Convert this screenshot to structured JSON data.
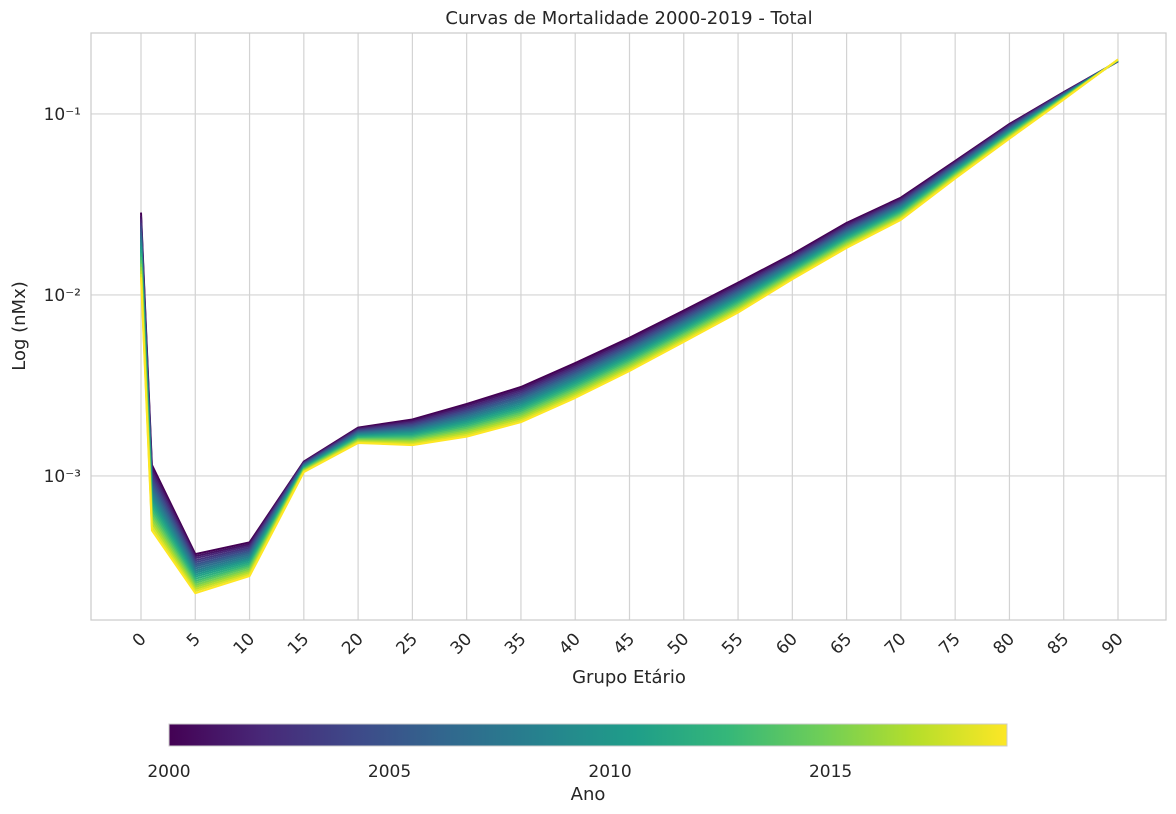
{
  "chart_data": {
    "type": "line",
    "title": "Curvas de Mortalidade 2000-2019 - Total",
    "xlabel": "Grupo Etário",
    "ylabel": "Log (nMx)",
    "yscale": "log",
    "ylim": [
      0.00016,
      0.28
    ],
    "y_tick_labels": [
      "10⁻³",
      "10⁻²",
      "10⁻¹"
    ],
    "x_tick_labels": [
      "0",
      "5",
      "10",
      "15",
      "20",
      "25",
      "30",
      "35",
      "40",
      "45",
      "50",
      "55",
      "60",
      "65",
      "70",
      "75",
      "80",
      "85",
      "90"
    ],
    "x": [
      0,
      1,
      5,
      10,
      15,
      20,
      25,
      30,
      35,
      40,
      45,
      50,
      55,
      60,
      65,
      70,
      75,
      80,
      85,
      90
    ],
    "grid": true,
    "colormap": "viridis",
    "series_2000": [
      0.0285,
      0.00115,
      0.00037,
      0.00043,
      0.0012,
      0.00185,
      0.00205,
      0.0025,
      0.0031,
      0.0042,
      0.0058,
      0.0082,
      0.0117,
      0.0168,
      0.025,
      0.0345,
      0.055,
      0.088,
      0.132,
      0.195
    ],
    "series_2019": [
      0.0125,
      0.0005,
      0.000225,
      0.00028,
      0.00105,
      0.00152,
      0.00148,
      0.00165,
      0.00198,
      0.0027,
      0.0038,
      0.0055,
      0.008,
      0.0122,
      0.0182,
      0.026,
      0.044,
      0.073,
      0.12,
      0.2
    ],
    "colorbar": {
      "label": "Ano",
      "min": 2000,
      "max": 2019,
      "tick_labels": [
        "2000",
        "2005",
        "2010",
        "2015"
      ]
    }
  }
}
